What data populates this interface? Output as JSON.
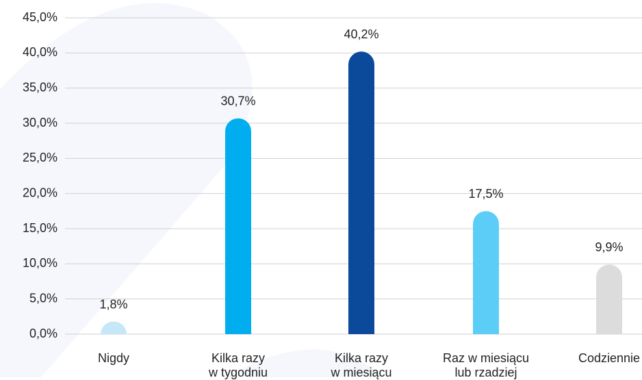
{
  "chart_data": {
    "type": "bar",
    "categories": [
      "Nigdy",
      "Kilka razy\nw tygodniu",
      "Kilka razy\nw miesiącu",
      "Raz w miesiącu\nlub rzadziej",
      "Codziennie"
    ],
    "values": [
      1.8,
      30.7,
      40.2,
      17.5,
      9.9
    ],
    "value_labels": [
      "1,8%",
      "30,7%",
      "40,2%",
      "17,5%",
      "9,9%"
    ],
    "colors": [
      "#c6e7f8",
      "#00aeef",
      "#0b4a9b",
      "#5ccdf6",
      "#dcdcdc"
    ],
    "ylim": [
      0,
      45
    ],
    "yticks": [
      {
        "value": 0,
        "label": "0,0%"
      },
      {
        "value": 5,
        "label": "5,0%"
      },
      {
        "value": 10,
        "label": "10,0%"
      },
      {
        "value": 15,
        "label": "15,0%"
      },
      {
        "value": 20,
        "label": "20,0%"
      },
      {
        "value": 25,
        "label": "25,0%"
      },
      {
        "value": 30,
        "label": "30,0%"
      },
      {
        "value": 35,
        "label": "35,0%"
      },
      {
        "value": 40,
        "label": "40,0%"
      },
      {
        "value": 45,
        "label": "45,0%"
      }
    ],
    "grid": true
  }
}
